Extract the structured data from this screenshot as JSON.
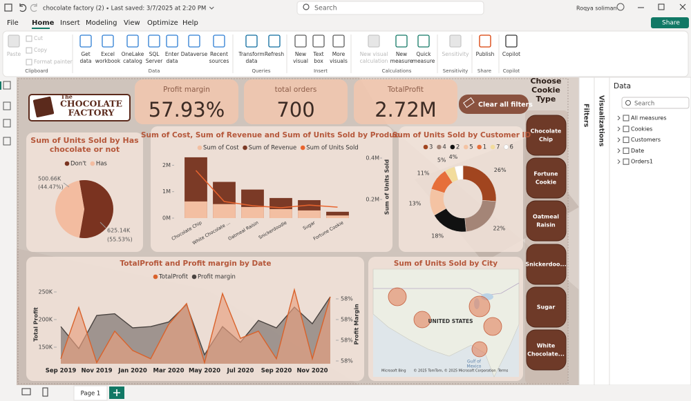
{
  "title_bar": {
    "file_name": "chocolate factory (2)",
    "saved": "Last saved: 3/7/2025 at 2:20 PM",
    "search": "Search",
    "user": "Roqya soliman"
  },
  "menu": {
    "tabs": [
      "File",
      "Home",
      "Insert",
      "Modeling",
      "View",
      "Optimize",
      "Help"
    ],
    "active_tab": 1,
    "share": "Share"
  },
  "ribbon": {
    "groups": [
      {
        "name": "Clipboard",
        "items": [
          [
            "Paste"
          ],
          [
            "Cut"
          ],
          [
            "Copy"
          ],
          [
            "Format painter"
          ]
        ]
      },
      {
        "name": "Data",
        "items": [
          [
            "Get",
            "data"
          ],
          [
            "Excel",
            "workbook"
          ],
          [
            "OneLake",
            "catalog"
          ],
          [
            "SQL",
            "Server"
          ],
          [
            "Enter",
            "data"
          ],
          [
            "Dataverse"
          ],
          [
            "Recent",
            "sources"
          ]
        ]
      },
      {
        "name": "Queries",
        "items": [
          [
            "Transform",
            "data"
          ],
          [
            "Refresh"
          ]
        ]
      },
      {
        "name": "Insert",
        "items": [
          [
            "New",
            "visual"
          ],
          [
            "Text",
            "box"
          ],
          [
            "More",
            "visuals"
          ]
        ]
      },
      {
        "name": "Calculations",
        "items": [
          [
            "New visual",
            "calculation"
          ],
          [
            "New",
            "measure"
          ],
          [
            "Quick",
            "measure"
          ]
        ]
      },
      {
        "name": "Sensitivity",
        "items": [
          [
            "Sensitivity"
          ]
        ]
      },
      {
        "name": "Share",
        "items": [
          [
            "Publish"
          ]
        ]
      },
      {
        "name": "Copilot",
        "items": [
          [
            "Copilot"
          ]
        ]
      }
    ]
  },
  "report": {
    "logo": [
      "The",
      "CHOCOLATE",
      "FACTORY"
    ],
    "cards": [
      {
        "label": "Profit margin",
        "value": "57.93%"
      },
      {
        "label": "total orders",
        "value": "700"
      },
      {
        "label": "TotalProfit",
        "value": "2.72M"
      }
    ],
    "clear_filters": "Clear all filters",
    "slicer": {
      "title": [
        "Choose",
        "Cookie",
        "Type"
      ],
      "items": [
        [
          "Chocolate",
          "Chip"
        ],
        [
          "Fortune",
          "Cookie"
        ],
        [
          "Oatmeal",
          "Raisin"
        ],
        [
          "Snickerdoo..."
        ],
        [
          "Sugar"
        ],
        [
          "White",
          "Chocolate..."
        ]
      ]
    },
    "map": {
      "title": "Sum of Units Sold by City",
      "country": "UNITED STATES",
      "gulf": [
        "Gulf of",
        "Mexico"
      ],
      "brand": "Microsoft Bing",
      "copyright": "© 2025 TomTom, © 2025 Microsoft Corporation",
      "terms": "Terms"
    }
  },
  "chart_data": [
    {
      "type": "pie",
      "title": "Sum of Units Sold by Has chocolate or not",
      "categories": [
        "Don't",
        "Has"
      ],
      "colors": [
        "#7a3320",
        "#f3bca0"
      ],
      "values": [
        625140,
        500660
      ],
      "value_labels": [
        "625.14K",
        "500.66K"
      ],
      "percent_labels": [
        "(55.53%)",
        "(44.47%)"
      ],
      "legend": "top"
    },
    {
      "type": "bar_line",
      "title": "Sum of Cost, Sum of Revenue and Sum of Units Sold by Product",
      "categories": [
        "Chocolate Chip",
        "White Chocolate ...",
        "Oatmeal Raisin",
        "Snickerdoodle",
        "Sugar",
        "Fortune Cookie"
      ],
      "series": [
        {
          "name": "Sum of Cost",
          "color": "#f3bfa2",
          "values": [
            0.63,
            0.53,
            0.42,
            0.34,
            0.29,
            0.1
          ]
        },
        {
          "name": "Sum of Revenue",
          "color": "#7b3a26",
          "values": [
            2.3,
            1.37,
            1.08,
            0.76,
            0.68,
            0.24
          ]
        },
        {
          "name": "Sum of Units Sold",
          "color": "#e8642e",
          "axis": "y2",
          "values": [
            0.34,
            0.19,
            0.17,
            0.16,
            0.173,
            0.163
          ]
        }
      ],
      "ylim": [
        0,
        2.35
      ],
      "yticks": [
        {
          "value": 0,
          "label": "0M"
        },
        {
          "value": 1,
          "label": "1M"
        },
        {
          "value": 2,
          "label": "2M"
        }
      ],
      "y2lim": [
        0.11,
        0.41
      ],
      "y2ticks": [
        {
          "value": 0.2,
          "label": "0.2M"
        },
        {
          "value": 0.4,
          "label": "0.4M"
        }
      ],
      "y2_label": "Sum of Units Sold",
      "legend": "top"
    },
    {
      "type": "donut",
      "title": "Sum of Units Sold by Customer ID",
      "categories": [
        "3",
        "4",
        "2",
        "5",
        "1",
        "7",
        "6"
      ],
      "values": [
        26,
        22,
        18,
        13,
        11,
        5,
        4
      ],
      "value_labels": [
        "26%",
        "22%",
        "18%",
        "13%",
        "11%",
        "5%",
        "4%"
      ],
      "colors": [
        "#a1451f",
        "#a48577",
        "#111111",
        "#f4c3a3",
        "#e66f3a",
        "#f2dc9c",
        "#ffffff"
      ],
      "legend": "top"
    },
    {
      "type": "area",
      "title": "TotalProfit and Profit margin by Date",
      "categories": [
        "Sep 2019",
        null,
        "Nov 2019",
        null,
        "Jan 2020",
        null,
        "Mar 2020",
        null,
        "May 2020",
        null,
        "Jul 2020",
        null,
        "Sep 2020",
        null,
        "Nov 2020",
        null
      ],
      "series": [
        {
          "name": "TotalProfit",
          "color": "#d9622b",
          "values": [
            129,
            222,
            122,
            179,
            144,
            129,
            191,
            229,
            122,
            247,
            166,
            179,
            129,
            254,
            129,
            241
          ]
        },
        {
          "name": "Profit margin",
          "color": "#4a4441",
          "axis": "y2",
          "values": [
            57.983,
            57.93,
            58.01,
            58.014,
            57.98,
            57.983,
            57.994,
            58.036,
            57.915,
            57.983,
            57.945,
            57.998,
            57.98,
            58.03,
            57.99,
            58.055
          ]
        }
      ],
      "ylim": [
        110,
        260
      ],
      "yticks": [
        {
          "value": 150,
          "label": "150K"
        },
        {
          "value": 200,
          "label": "200K"
        },
        {
          "value": 250,
          "label": "250K"
        }
      ],
      "y_label": "Total Profit",
      "y2lim": [
        57.88,
        58.08
      ],
      "y2ticks": [
        {
          "value": 57.9,
          "label": "58%"
        },
        {
          "value": 57.95,
          "label": "58%"
        },
        {
          "value": 58,
          "label": "58%"
        },
        {
          "value": 58.05,
          "label": "58%"
        }
      ],
      "y2_label": "Profit Margin",
      "legend": "top"
    }
  ],
  "panes": {
    "filters": "Filters",
    "visualizations": "Visualizations",
    "data": {
      "title": "Data",
      "search": "Search",
      "items": [
        "All measures",
        "Cookies",
        "Customers",
        "Date",
        "Orders1"
      ]
    }
  },
  "footer": {
    "page": "Page 1"
  }
}
